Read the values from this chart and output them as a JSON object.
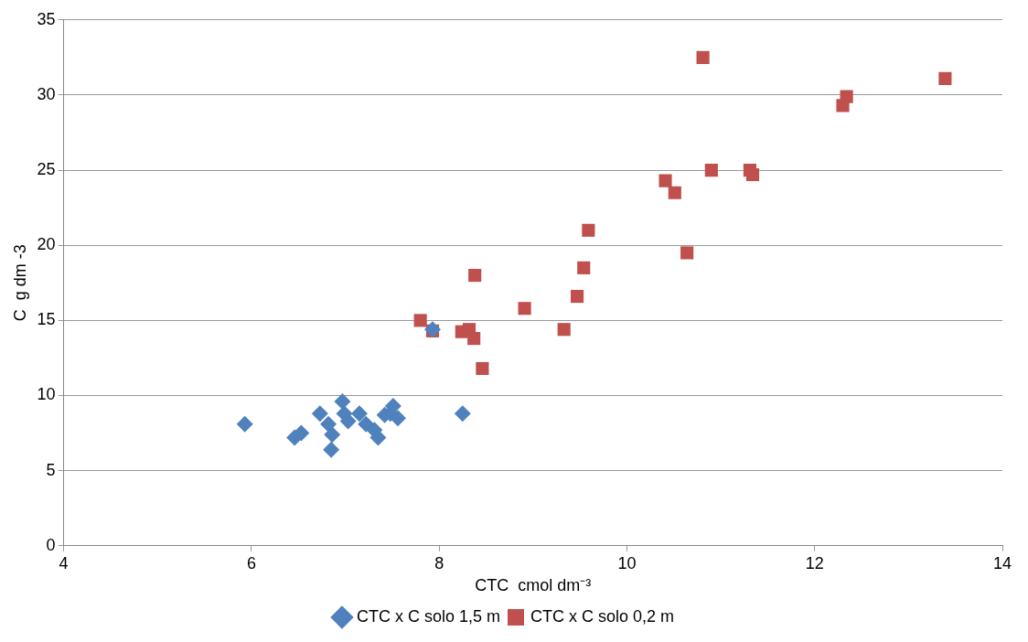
{
  "chart_data": {
    "type": "scatter",
    "xlabel": "CTC  cmol dm⁻³",
    "ylabel": "C  g dm -3",
    "xlim": [
      4,
      14
    ],
    "xticks": [
      4,
      6,
      8,
      10,
      12,
      14
    ],
    "ylim": [
      0,
      35
    ],
    "yticks": [
      0,
      5,
      10,
      15,
      20,
      25,
      30,
      35
    ],
    "grid": "y",
    "legend": "bottom",
    "series": [
      {
        "name": "CTC x C solo 0,2 m",
        "color": "#c0504d",
        "marker": "square",
        "x": [
          7.8,
          7.93,
          8.24,
          8.32,
          8.37,
          8.46,
          8.38,
          8.91,
          9.33,
          9.47,
          9.54,
          9.59,
          10.41,
          10.51,
          10.64,
          10.81,
          10.9,
          11.31,
          11.34,
          12.3,
          12.34,
          13.39
        ],
        "values": [
          15.0,
          14.3,
          14.25,
          14.4,
          13.8,
          11.8,
          18.0,
          15.8,
          14.4,
          16.6,
          18.5,
          21.0,
          24.3,
          23.5,
          19.5,
          32.5,
          25.0,
          25.0,
          24.7,
          29.3,
          29.9,
          31.1
        ]
      },
      {
        "name": "CTC x C solo 1,5 m",
        "color": "#4f81bd",
        "marker": "diamond",
        "x": [
          5.93,
          6.46,
          6.53,
          6.73,
          6.82,
          6.86,
          6.85,
          6.97,
          6.99,
          7.03,
          7.15,
          7.22,
          7.31,
          7.35,
          7.42,
          7.48,
          7.51,
          7.56,
          7.93,
          8.25
        ],
        "values": [
          8.1,
          7.2,
          7.5,
          8.8,
          8.1,
          7.4,
          6.4,
          9.6,
          8.8,
          8.3,
          8.8,
          8.1,
          7.7,
          7.2,
          8.7,
          8.8,
          9.3,
          8.5,
          14.4,
          8.8
        ]
      }
    ]
  }
}
